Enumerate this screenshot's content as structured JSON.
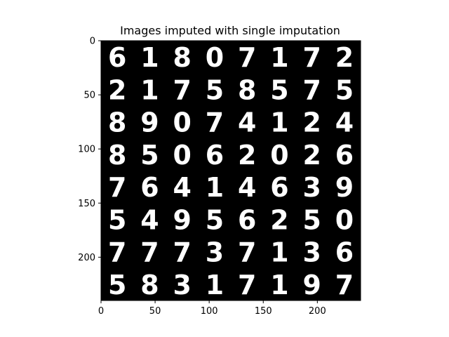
{
  "chart_data": {
    "type": "image-grid",
    "title": "Images imputed with single imputation",
    "xlabel": "",
    "ylabel": "",
    "xlim": [
      0,
      240
    ],
    "ylim": [
      240,
      0
    ],
    "x_ticks": [
      0,
      50,
      100,
      150,
      200
    ],
    "y_ticks": [
      0,
      50,
      100,
      150,
      200
    ],
    "grid_rows": 8,
    "grid_cols": 8,
    "cell_size": 30,
    "digits": [
      [
        "6",
        "1",
        "8",
        "0",
        "7",
        "1",
        "7",
        "2"
      ],
      [
        "2",
        "1",
        "7",
        "5",
        "8",
        "5",
        "7",
        "5"
      ],
      [
        "8",
        "9",
        "0",
        "7",
        "4",
        "1",
        "2",
        "4"
      ],
      [
        "8",
        "5",
        "0",
        "6",
        "2",
        "0",
        "2",
        "6"
      ],
      [
        "7",
        "6",
        "4",
        "1",
        "4",
        "6",
        "3",
        "9"
      ],
      [
        "5",
        "4",
        "9",
        "5",
        "6",
        "2",
        "5",
        "0"
      ],
      [
        "7",
        "7",
        "7",
        "3",
        "7",
        "1",
        "3",
        "6"
      ],
      [
        "5",
        "8",
        "3",
        "1",
        "7",
        "1",
        "9",
        "7"
      ]
    ],
    "background_color": "#000000",
    "digit_color": "#ffffff",
    "grid": false
  }
}
